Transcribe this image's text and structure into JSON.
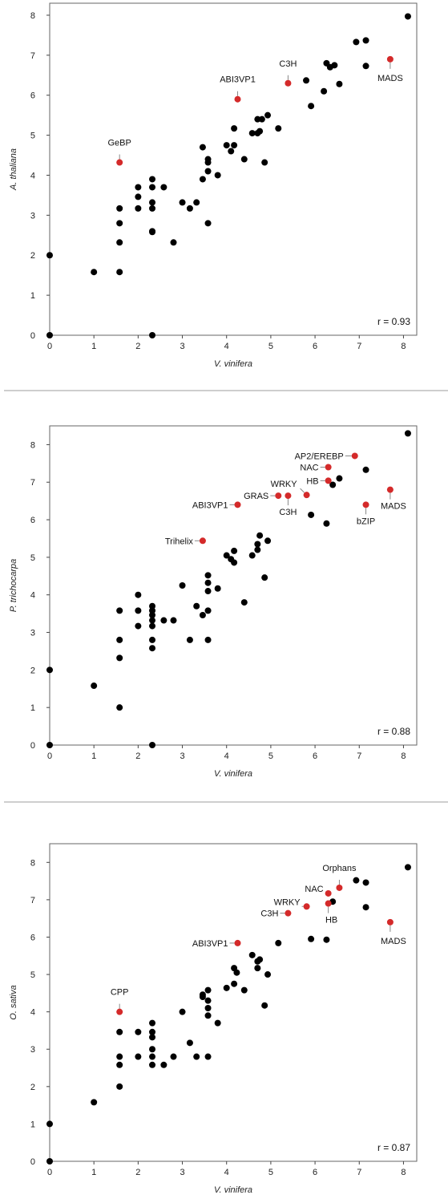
{
  "chart_data": [
    {
      "type": "scatter",
      "title": "",
      "xlabel": "V. vinifera",
      "ylabel": "A. thaliana",
      "xlim": [
        0,
        8.3
      ],
      "ylim": [
        0,
        8.3
      ],
      "xticks": [
        "0",
        "1",
        "2",
        "3",
        "4",
        "5",
        "6",
        "7",
        "8"
      ],
      "yticks": [
        "0",
        "1",
        "2",
        "3",
        "4",
        "5",
        "6",
        "7",
        "8"
      ],
      "grid": false,
      "annotation": "r = 0.93",
      "colors": {
        "point": "#000000",
        "highlight": "#d42a2a"
      },
      "points": [
        [
          0,
          0
        ],
        [
          0,
          2
        ],
        [
          1,
          1.58
        ],
        [
          1.58,
          1.58
        ],
        [
          1.58,
          2.32
        ],
        [
          1.58,
          2.8
        ],
        [
          1.58,
          3.17
        ],
        [
          2,
          3.17
        ],
        [
          2,
          3.46
        ],
        [
          2,
          3.7
        ],
        [
          2.32,
          2.58
        ],
        [
          2.32,
          2.6
        ],
        [
          2.32,
          3.17
        ],
        [
          2.32,
          3.32
        ],
        [
          2.32,
          3.7
        ],
        [
          2.32,
          3.9
        ],
        [
          2.32,
          0
        ],
        [
          2.58,
          3.7
        ],
        [
          2.8,
          2.32
        ],
        [
          3,
          3.32
        ],
        [
          3.17,
          3.17
        ],
        [
          3.32,
          3.32
        ],
        [
          3.46,
          3.9
        ],
        [
          3.46,
          4.7
        ],
        [
          3.58,
          2.8
        ],
        [
          3.58,
          4.1
        ],
        [
          3.58,
          4.32
        ],
        [
          3.58,
          4.4
        ],
        [
          3.8,
          4
        ],
        [
          4,
          4.75
        ],
        [
          4.1,
          4.6
        ],
        [
          4.17,
          4.75
        ],
        [
          4.17,
          5.17
        ],
        [
          4.4,
          4.4
        ],
        [
          4.58,
          5.05
        ],
        [
          4.7,
          5.05
        ],
        [
          4.7,
          5.4
        ],
        [
          4.75,
          5.1
        ],
        [
          4.8,
          5.4
        ],
        [
          4.86,
          4.32
        ],
        [
          4.93,
          5.5
        ],
        [
          5.17,
          5.17
        ],
        [
          5.8,
          6.37
        ],
        [
          5.91,
          5.73
        ],
        [
          6.2,
          6.1
        ],
        [
          6.26,
          6.8
        ],
        [
          6.34,
          6.7
        ],
        [
          6.44,
          6.75
        ],
        [
          6.55,
          6.28
        ],
        [
          6.93,
          7.33
        ],
        [
          7.15,
          7.37
        ],
        [
          7.15,
          6.73
        ],
        [
          8.1,
          7.97
        ]
      ],
      "highlights": [
        {
          "x": 1.58,
          "y": 4.32,
          "label": "GeBP"
        },
        {
          "x": 4.25,
          "y": 5.9,
          "label": "ABI3VP1"
        },
        {
          "x": 5.39,
          "y": 6.3,
          "label": "C3H"
        },
        {
          "x": 7.7,
          "y": 6.9,
          "label": "MADS"
        }
      ]
    },
    {
      "type": "scatter",
      "title": "",
      "xlabel": "V. vinifera",
      "ylabel": "P. trichocarpa",
      "xlim": [
        0,
        8.3
      ],
      "ylim": [
        0,
        8.5
      ],
      "xticks": [
        "0",
        "1",
        "2",
        "3",
        "4",
        "5",
        "6",
        "7",
        "8"
      ],
      "yticks": [
        "0",
        "1",
        "2",
        "3",
        "4",
        "5",
        "6",
        "7",
        "8"
      ],
      "grid": false,
      "annotation": "r = 0.88",
      "colors": {
        "point": "#000000",
        "highlight": "#d42a2a"
      },
      "points": [
        [
          0,
          0
        ],
        [
          0,
          2
        ],
        [
          1,
          1.58
        ],
        [
          1.58,
          1
        ],
        [
          1.58,
          2.32
        ],
        [
          1.58,
          2.8
        ],
        [
          1.58,
          3.58
        ],
        [
          2,
          3.17
        ],
        [
          2,
          3.58
        ],
        [
          2,
          4
        ],
        [
          2.32,
          2.58
        ],
        [
          2.32,
          2.8
        ],
        [
          2.32,
          3.17
        ],
        [
          2.32,
          3.32
        ],
        [
          2.32,
          3.46
        ],
        [
          2.32,
          3.58
        ],
        [
          2.32,
          3.7
        ],
        [
          2.32,
          0
        ],
        [
          2.58,
          3.32
        ],
        [
          2.8,
          3.32
        ],
        [
          3,
          4.25
        ],
        [
          3.17,
          2.8
        ],
        [
          3.32,
          3.7
        ],
        [
          3.46,
          3.46
        ],
        [
          3.58,
          2.8
        ],
        [
          3.58,
          3.58
        ],
        [
          3.58,
          4.1
        ],
        [
          3.58,
          4.32
        ],
        [
          3.58,
          4.52
        ],
        [
          3.8,
          4.17
        ],
        [
          4,
          5.05
        ],
        [
          4.1,
          4.95
        ],
        [
          4.17,
          4.86
        ],
        [
          4.17,
          5.17
        ],
        [
          4.4,
          3.8
        ],
        [
          4.58,
          5.05
        ],
        [
          4.7,
          5.2
        ],
        [
          4.7,
          5.35
        ],
        [
          4.75,
          5.58
        ],
        [
          4.86,
          4.46
        ],
        [
          4.93,
          5.44
        ],
        [
          5.91,
          6.13
        ],
        [
          6.26,
          5.9
        ],
        [
          6.4,
          6.93
        ],
        [
          6.55,
          7.1
        ],
        [
          7.15,
          7.33
        ],
        [
          8.1,
          8.3
        ]
      ],
      "highlights": [
        {
          "x": 3.46,
          "y": 5.44,
          "label": "Trihelix"
        },
        {
          "x": 4.25,
          "y": 6.4,
          "label": "ABI3VP1"
        },
        {
          "x": 5.17,
          "y": 6.64,
          "label": "GRAS"
        },
        {
          "x": 5.39,
          "y": 6.64,
          "label": "C3H"
        },
        {
          "x": 5.81,
          "y": 6.66,
          "label": "WRKY"
        },
        {
          "x": 6.3,
          "y": 7.04,
          "label": "HB"
        },
        {
          "x": 6.3,
          "y": 7.4,
          "label": "NAC"
        },
        {
          "x": 6.9,
          "y": 7.7,
          "label": "AP2/EREBP"
        },
        {
          "x": 7.15,
          "y": 6.4,
          "label": "bZIP"
        },
        {
          "x": 7.7,
          "y": 6.8,
          "label": "MADS"
        }
      ]
    },
    {
      "type": "scatter",
      "title": "",
      "xlabel": "V. vinifera",
      "ylabel": "O. sativa",
      "xlim": [
        0,
        8.3
      ],
      "ylim": [
        0,
        8.5
      ],
      "xticks": [
        "0",
        "1",
        "2",
        "3",
        "4",
        "5",
        "6",
        "7",
        "8"
      ],
      "yticks": [
        "0",
        "1",
        "2",
        "3",
        "4",
        "5",
        "6",
        "7",
        "8"
      ],
      "grid": false,
      "annotation": "r = 0.87",
      "colors": {
        "point": "#000000",
        "highlight": "#d42a2a"
      },
      "points": [
        [
          0,
          0
        ],
        [
          0,
          1
        ],
        [
          1,
          1.58
        ],
        [
          1.58,
          2
        ],
        [
          1.58,
          2.58
        ],
        [
          1.58,
          2.8
        ],
        [
          1.58,
          3.46
        ],
        [
          2,
          2.8
        ],
        [
          2,
          3.46
        ],
        [
          2.32,
          2.58
        ],
        [
          2.32,
          2.8
        ],
        [
          2.32,
          3
        ],
        [
          2.32,
          3.32
        ],
        [
          2.32,
          3.46
        ],
        [
          2.32,
          3.7
        ],
        [
          2.58,
          2.58
        ],
        [
          2.8,
          2.8
        ],
        [
          3,
          4
        ],
        [
          3.17,
          3.17
        ],
        [
          3.32,
          2.8
        ],
        [
          3.46,
          4.4
        ],
        [
          3.46,
          4.46
        ],
        [
          3.58,
          2.8
        ],
        [
          3.58,
          3.9
        ],
        [
          3.58,
          4.1
        ],
        [
          3.58,
          4.3
        ],
        [
          3.58,
          4.58
        ],
        [
          3.8,
          3.7
        ],
        [
          4,
          4.64
        ],
        [
          4.17,
          4.75
        ],
        [
          4.17,
          5.17
        ],
        [
          4.23,
          5.05
        ],
        [
          4.4,
          4.58
        ],
        [
          4.58,
          5.52
        ],
        [
          4.7,
          5.17
        ],
        [
          4.7,
          5.35
        ],
        [
          4.75,
          5.4
        ],
        [
          4.86,
          4.17
        ],
        [
          4.93,
          5
        ],
        [
          5.17,
          5.84
        ],
        [
          5.91,
          5.95
        ],
        [
          6.26,
          5.93
        ],
        [
          6.4,
          6.95
        ],
        [
          6.93,
          7.52
        ],
        [
          7.15,
          7.46
        ],
        [
          7.15,
          6.8
        ],
        [
          8.1,
          7.87
        ]
      ],
      "highlights": [
        {
          "x": 1.58,
          "y": 4,
          "label": "CPP"
        },
        {
          "x": 4.25,
          "y": 5.84,
          "label": "ABI3VP1"
        },
        {
          "x": 5.39,
          "y": 6.64,
          "label": "C3H"
        },
        {
          "x": 5.81,
          "y": 6.82,
          "label": "WRKY"
        },
        {
          "x": 6.3,
          "y": 7.17,
          "label": "NAC"
        },
        {
          "x": 6.3,
          "y": 6.9,
          "label": "HB"
        },
        {
          "x": 6.55,
          "y": 7.32,
          "label": "Orphans"
        },
        {
          "x": 7.7,
          "y": 6.4,
          "label": "MADS"
        }
      ]
    }
  ]
}
